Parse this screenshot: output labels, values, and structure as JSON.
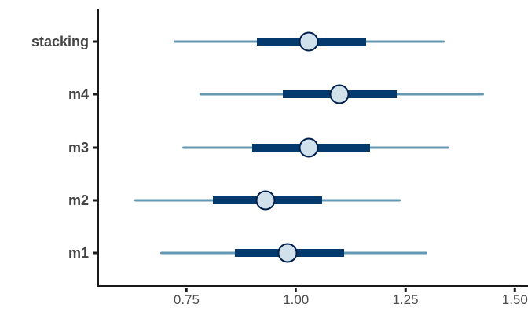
{
  "chart_data": {
    "type": "interval",
    "variant": "horizontal-forest-plot",
    "title": "",
    "xlabel": "",
    "ylabel": "",
    "categories": [
      "stacking",
      "m4",
      "m3",
      "m2",
      "m1"
    ],
    "series": [
      {
        "name": "stacking",
        "outer": [
          0.72,
          1.34
        ],
        "inner": [
          0.91,
          1.16
        ],
        "point": 1.03
      },
      {
        "name": "m4",
        "outer": [
          0.78,
          1.43
        ],
        "inner": [
          0.97,
          1.23
        ],
        "point": 1.1
      },
      {
        "name": "m3",
        "outer": [
          0.74,
          1.35
        ],
        "inner": [
          0.9,
          1.17
        ],
        "point": 1.03
      },
      {
        "name": "m2",
        "outer": [
          0.63,
          1.24
        ],
        "inner": [
          0.81,
          1.06
        ],
        "point": 0.93
      },
      {
        "name": "m1",
        "outer": [
          0.69,
          1.3
        ],
        "inner": [
          0.86,
          1.11
        ],
        "point": 0.98
      }
    ],
    "x_axis": {
      "ticks": [
        0.75,
        1.0,
        1.25,
        1.5
      ],
      "tick_labels": [
        "0.75",
        "1.00",
        "1.25",
        "1.50"
      ],
      "range": [
        0.55,
        1.53
      ]
    },
    "grid": false,
    "legend": "none",
    "colors": {
      "outer_interval": "#6497b1",
      "inner_interval": "#03396c",
      "point_fill": "#d1e1ec",
      "point_stroke": "#011f4b",
      "axis_line": "#1a1a1a",
      "category_label": "#444444",
      "tick_label": "#4d4d4d",
      "background": "#ffffff"
    }
  }
}
